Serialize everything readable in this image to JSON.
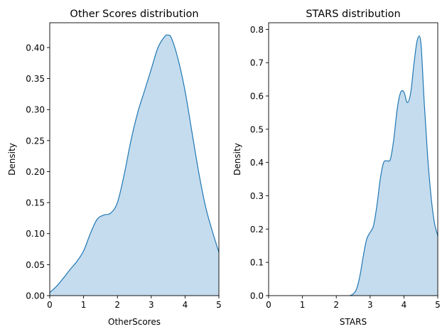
{
  "chart_data": [
    {
      "type": "area",
      "title": "Other Scores distribution",
      "xlabel": "OtherScores",
      "ylabel": "Density",
      "xlim": [
        0,
        5
      ],
      "ylim": [
        0,
        0.44
      ],
      "xticks": [
        0,
        1,
        2,
        3,
        4,
        5
      ],
      "xtick_labels": [
        "0",
        "1",
        "2",
        "3",
        "4",
        "5"
      ],
      "yticks": [
        0,
        0.05,
        0.1,
        0.15,
        0.2,
        0.25,
        0.3,
        0.35,
        0.4
      ],
      "ytick_labels": [
        "0.00",
        "0.05",
        "0.10",
        "0.15",
        "0.20",
        "0.25",
        "0.30",
        "0.35",
        "0.40"
      ],
      "grid": false,
      "line_color": "#1f77b4",
      "fill_color": "#c5dcee",
      "series": [
        {
          "x": [
            0,
            0.2,
            0.4,
            0.6,
            0.8,
            1.0,
            1.2,
            1.4,
            1.6,
            1.8,
            2.0,
            2.2,
            2.4,
            2.6,
            2.8,
            3.0,
            3.2,
            3.4,
            3.5,
            3.6,
            3.8,
            4.0,
            4.2,
            4.4,
            4.6,
            4.8,
            5.0
          ],
          "y": [
            0.005,
            0.015,
            0.028,
            0.042,
            0.055,
            0.072,
            0.1,
            0.123,
            0.13,
            0.133,
            0.15,
            0.195,
            0.25,
            0.295,
            0.33,
            0.365,
            0.4,
            0.418,
            0.42,
            0.415,
            0.38,
            0.33,
            0.265,
            0.2,
            0.145,
            0.105,
            0.07
          ]
        }
      ]
    },
    {
      "type": "area",
      "title": "STARS distribution",
      "xlabel": "STARS",
      "ylabel": "Density",
      "xlim": [
        0,
        5
      ],
      "ylim": [
        0,
        0.82
      ],
      "xticks": [
        0,
        1,
        2,
        3,
        4,
        5
      ],
      "xtick_labels": [
        "0",
        "1",
        "2",
        "3",
        "4",
        "5"
      ],
      "yticks": [
        0,
        0.1,
        0.2,
        0.3,
        0.4,
        0.5,
        0.6,
        0.7,
        0.8
      ],
      "ytick_labels": [
        "0.0",
        "0.1",
        "0.2",
        "0.3",
        "0.4",
        "0.5",
        "0.6",
        "0.7",
        "0.8"
      ],
      "grid": false,
      "line_color": "#1f77b4",
      "fill_color": "#c5dcee",
      "series": [
        {
          "x": [
            2.4,
            2.5,
            2.6,
            2.7,
            2.8,
            2.9,
            3.0,
            3.1,
            3.2,
            3.3,
            3.4,
            3.5,
            3.6,
            3.7,
            3.8,
            3.9,
            4.0,
            4.1,
            4.2,
            4.3,
            4.4,
            4.5,
            4.6,
            4.7,
            4.8,
            4.9,
            5.0
          ],
          "y": [
            0,
            0.005,
            0.02,
            0.06,
            0.12,
            0.17,
            0.19,
            0.21,
            0.27,
            0.35,
            0.4,
            0.405,
            0.41,
            0.47,
            0.56,
            0.61,
            0.612,
            0.58,
            0.61,
            0.7,
            0.77,
            0.76,
            0.58,
            0.42,
            0.3,
            0.22,
            0.18
          ]
        }
      ]
    }
  ]
}
